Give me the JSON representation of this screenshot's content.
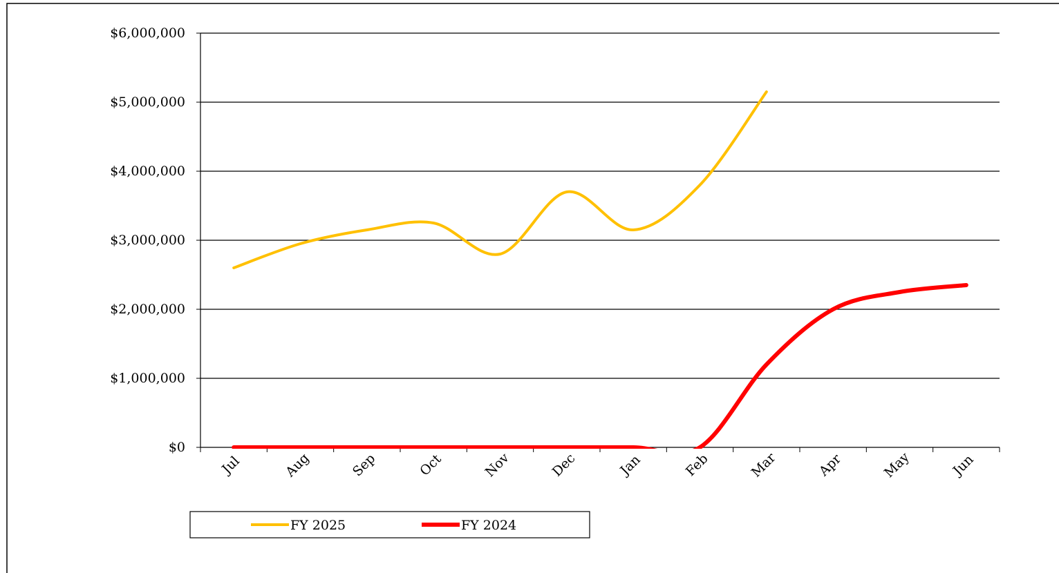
{
  "chart_data": {
    "type": "line",
    "categories": [
      "Jul",
      "Aug",
      "Sep",
      "Oct",
      "Nov",
      "Dec",
      "Jan",
      "Feb",
      "Mar",
      "Apr",
      "May",
      "Jun"
    ],
    "series": [
      {
        "name": "FY 2025",
        "color": "#ffc000",
        "values": [
          2600000,
          2950000,
          3150000,
          3250000,
          2800000,
          3700000,
          3150000,
          3800000,
          5150000,
          null,
          null,
          null
        ]
      },
      {
        "name": "FY 2024",
        "color": "#ff0000",
        "values": [
          0,
          0,
          0,
          0,
          0,
          0,
          0,
          0,
          1200000,
          2000000,
          2250000,
          2350000
        ]
      }
    ],
    "ylim": [
      0,
      6000000
    ],
    "yticks": [
      {
        "value": 0,
        "label": "$0"
      },
      {
        "value": 1000000,
        "label": "$1,000,000"
      },
      {
        "value": 2000000,
        "label": "$2,000,000"
      },
      {
        "value": 3000000,
        "label": "$3,000,000"
      },
      {
        "value": 4000000,
        "label": "$4,000,000"
      },
      {
        "value": 5000000,
        "label": "$5,000,000"
      },
      {
        "value": 6000000,
        "label": "$6,000,000"
      }
    ],
    "grid": true,
    "smooth": true,
    "legend": "bottom"
  }
}
